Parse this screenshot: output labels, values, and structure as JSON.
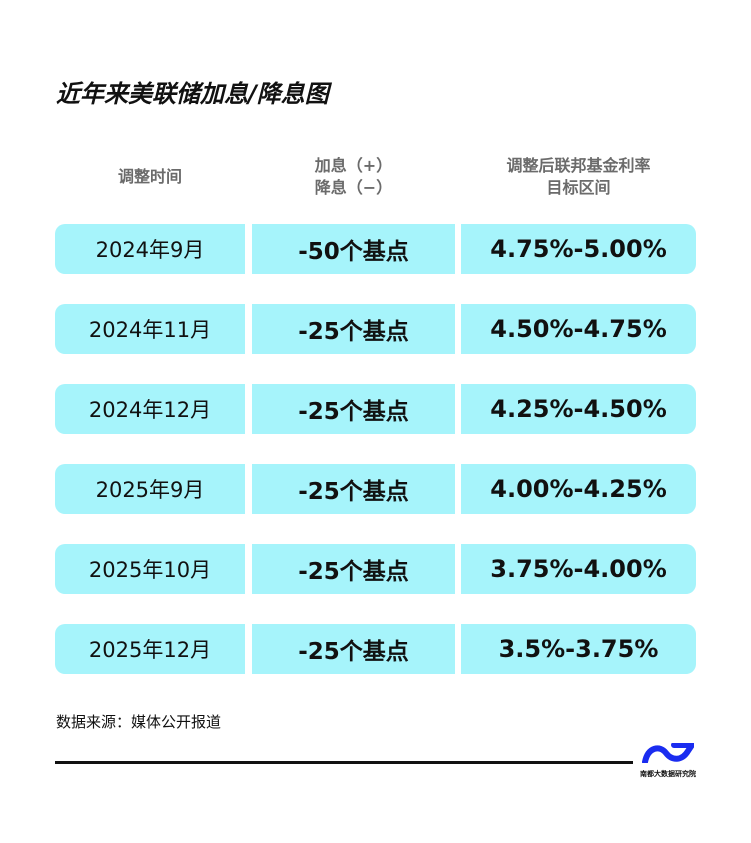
{
  "title": "近年来美联储加息/降息图",
  "headers": {
    "col1": "调整时间",
    "col2_line1": "加息（+）",
    "col2_line2": "降息（−）",
    "col3_line1": "调整后联邦基金利率",
    "col3_line2": "目标区间"
  },
  "rows": [
    {
      "date": "2024年9月",
      "change": "-50个基点",
      "range": "4.75%-5.00%"
    },
    {
      "date": "2024年11月",
      "change": "-25个基点",
      "range": "4.50%-4.75%"
    },
    {
      "date": "2024年12月",
      "change": "-25个基点",
      "range": "4.25%-4.50%"
    },
    {
      "date": "2025年9月",
      "change": "-25个基点",
      "range": "4.00%-4.25%"
    },
    {
      "date": "2025年10月",
      "change": "-25个基点",
      "range": "3.75%-4.00%"
    },
    {
      "date": "2025年12月",
      "change": "-25个基点",
      "range": "3.5%-3.75%"
    }
  ],
  "source": "数据来源：媒体公开报道",
  "logo": {
    "text": "南都大数据研究院",
    "color": "#1a2cf0"
  },
  "colors": {
    "cell_bg": "#a6f4fb",
    "header_text": "#6b6b6b"
  }
}
